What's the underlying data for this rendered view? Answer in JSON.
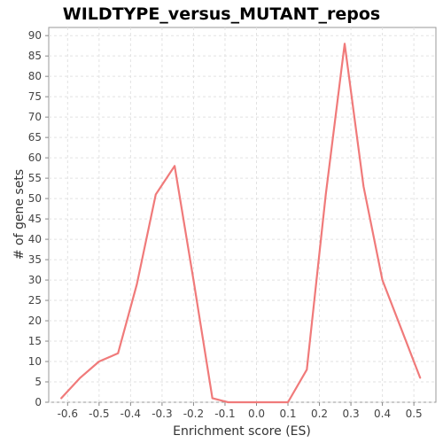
{
  "chart_data": {
    "type": "line",
    "title": "WILDTYPE_versus_MUTANT_repos",
    "xlabel": "Enrichment score (ES)",
    "ylabel": "# of gene sets",
    "xlim": [
      -0.66,
      0.57
    ],
    "ylim": [
      0,
      92
    ],
    "x_ticks": [
      -0.6,
      -0.5,
      -0.4,
      -0.3,
      -0.2,
      -0.1,
      0.0,
      0.1,
      0.2,
      0.3,
      0.4,
      0.5
    ],
    "x_tick_labels": [
      "-0.6",
      "-0.5",
      "-0.4",
      "-0.3",
      "-0.2",
      "-0.1",
      "0.0",
      "0.1",
      "0.2",
      "0.3",
      "0.4",
      "0.5"
    ],
    "y_ticks": [
      0,
      5,
      10,
      15,
      20,
      25,
      30,
      35,
      40,
      45,
      50,
      55,
      60,
      65,
      70,
      75,
      80,
      85,
      90
    ],
    "y_tick_labels": [
      "0",
      "5",
      "10",
      "15",
      "20",
      "25",
      "30",
      "35",
      "40",
      "45",
      "50",
      "55",
      "60",
      "65",
      "70",
      "75",
      "80",
      "85",
      "90"
    ],
    "grid": true,
    "series": [
      {
        "color": "#f07a7a",
        "x": [
          -0.62,
          -0.56,
          -0.5,
          -0.44,
          -0.38,
          -0.32,
          -0.26,
          -0.2,
          -0.14,
          -0.09,
          -0.03,
          0.03,
          0.1,
          0.16,
          0.22,
          0.28,
          0.34,
          0.4,
          0.46,
          0.52
        ],
        "y": [
          1,
          6,
          10,
          12,
          29,
          51,
          58,
          30,
          1,
          0,
          0,
          0,
          0,
          8,
          51,
          88,
          53,
          30,
          18,
          6
        ]
      }
    ]
  }
}
